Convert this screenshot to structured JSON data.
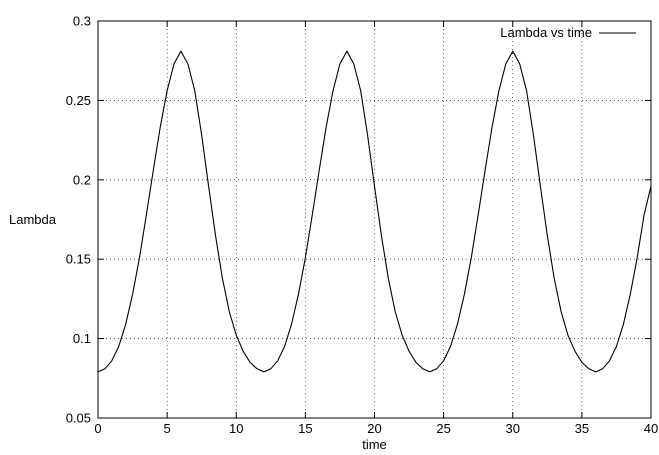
{
  "chart_data": {
    "type": "line",
    "xlabel": "time",
    "ylabel": "Lambda",
    "xlim": [
      0,
      40
    ],
    "ylim": [
      0.05,
      0.3
    ],
    "x_ticks": [
      0,
      5,
      10,
      15,
      20,
      25,
      30,
      35,
      40
    ],
    "x_tick_labels": [
      "0",
      "5",
      "10",
      "15",
      "20",
      "25",
      "30",
      "35",
      "40"
    ],
    "y_ticks": [
      0.05,
      0.1,
      0.15,
      0.2,
      0.25,
      0.3
    ],
    "y_tick_labels": [
      "0.05",
      "0.1",
      "0.15",
      "0.2",
      "0.25",
      "0.3"
    ],
    "grid": true,
    "legend_position": "top-right",
    "series": [
      {
        "name": "Lambda vs time",
        "color": "#000000",
        "x": [
          0,
          0.5,
          1,
          1.5,
          2,
          2.5,
          3,
          3.5,
          4,
          4.5,
          5,
          5.5,
          6,
          6.5,
          7,
          7.5,
          8,
          8.5,
          9,
          9.5,
          10,
          10.5,
          11,
          11.5,
          12,
          12.5,
          13,
          13.5,
          14,
          14.5,
          15,
          15.5,
          16,
          16.5,
          17,
          17.5,
          18,
          18.5,
          19,
          19.5,
          20,
          20.5,
          21,
          21.5,
          22,
          22.5,
          23,
          23.5,
          24,
          24.5,
          25,
          25.5,
          26,
          26.5,
          27,
          27.5,
          28,
          28.5,
          29,
          29.5,
          30,
          30.5,
          31,
          31.5,
          32,
          32.5,
          33,
          33.5,
          34,
          34.5,
          35,
          35.5,
          36,
          36.5,
          37,
          37.5,
          38,
          38.5,
          39,
          39.5,
          40
        ],
        "values": [
          0.079,
          0.081,
          0.086,
          0.095,
          0.109,
          0.128,
          0.151,
          0.178,
          0.206,
          0.233,
          0.256,
          0.273,
          0.281,
          0.273,
          0.256,
          0.228,
          0.196,
          0.165,
          0.138,
          0.117,
          0.102,
          0.092,
          0.085,
          0.081,
          0.079,
          0.081,
          0.086,
          0.095,
          0.109,
          0.128,
          0.151,
          0.178,
          0.206,
          0.233,
          0.256,
          0.273,
          0.281,
          0.273,
          0.256,
          0.228,
          0.196,
          0.165,
          0.138,
          0.117,
          0.102,
          0.092,
          0.085,
          0.081,
          0.079,
          0.081,
          0.086,
          0.095,
          0.109,
          0.128,
          0.151,
          0.178,
          0.206,
          0.233,
          0.256,
          0.273,
          0.281,
          0.273,
          0.256,
          0.228,
          0.196,
          0.165,
          0.138,
          0.117,
          0.102,
          0.092,
          0.085,
          0.081,
          0.079,
          0.081,
          0.086,
          0.095,
          0.109,
          0.128,
          0.151,
          0.178,
          0.196
        ]
      }
    ]
  }
}
